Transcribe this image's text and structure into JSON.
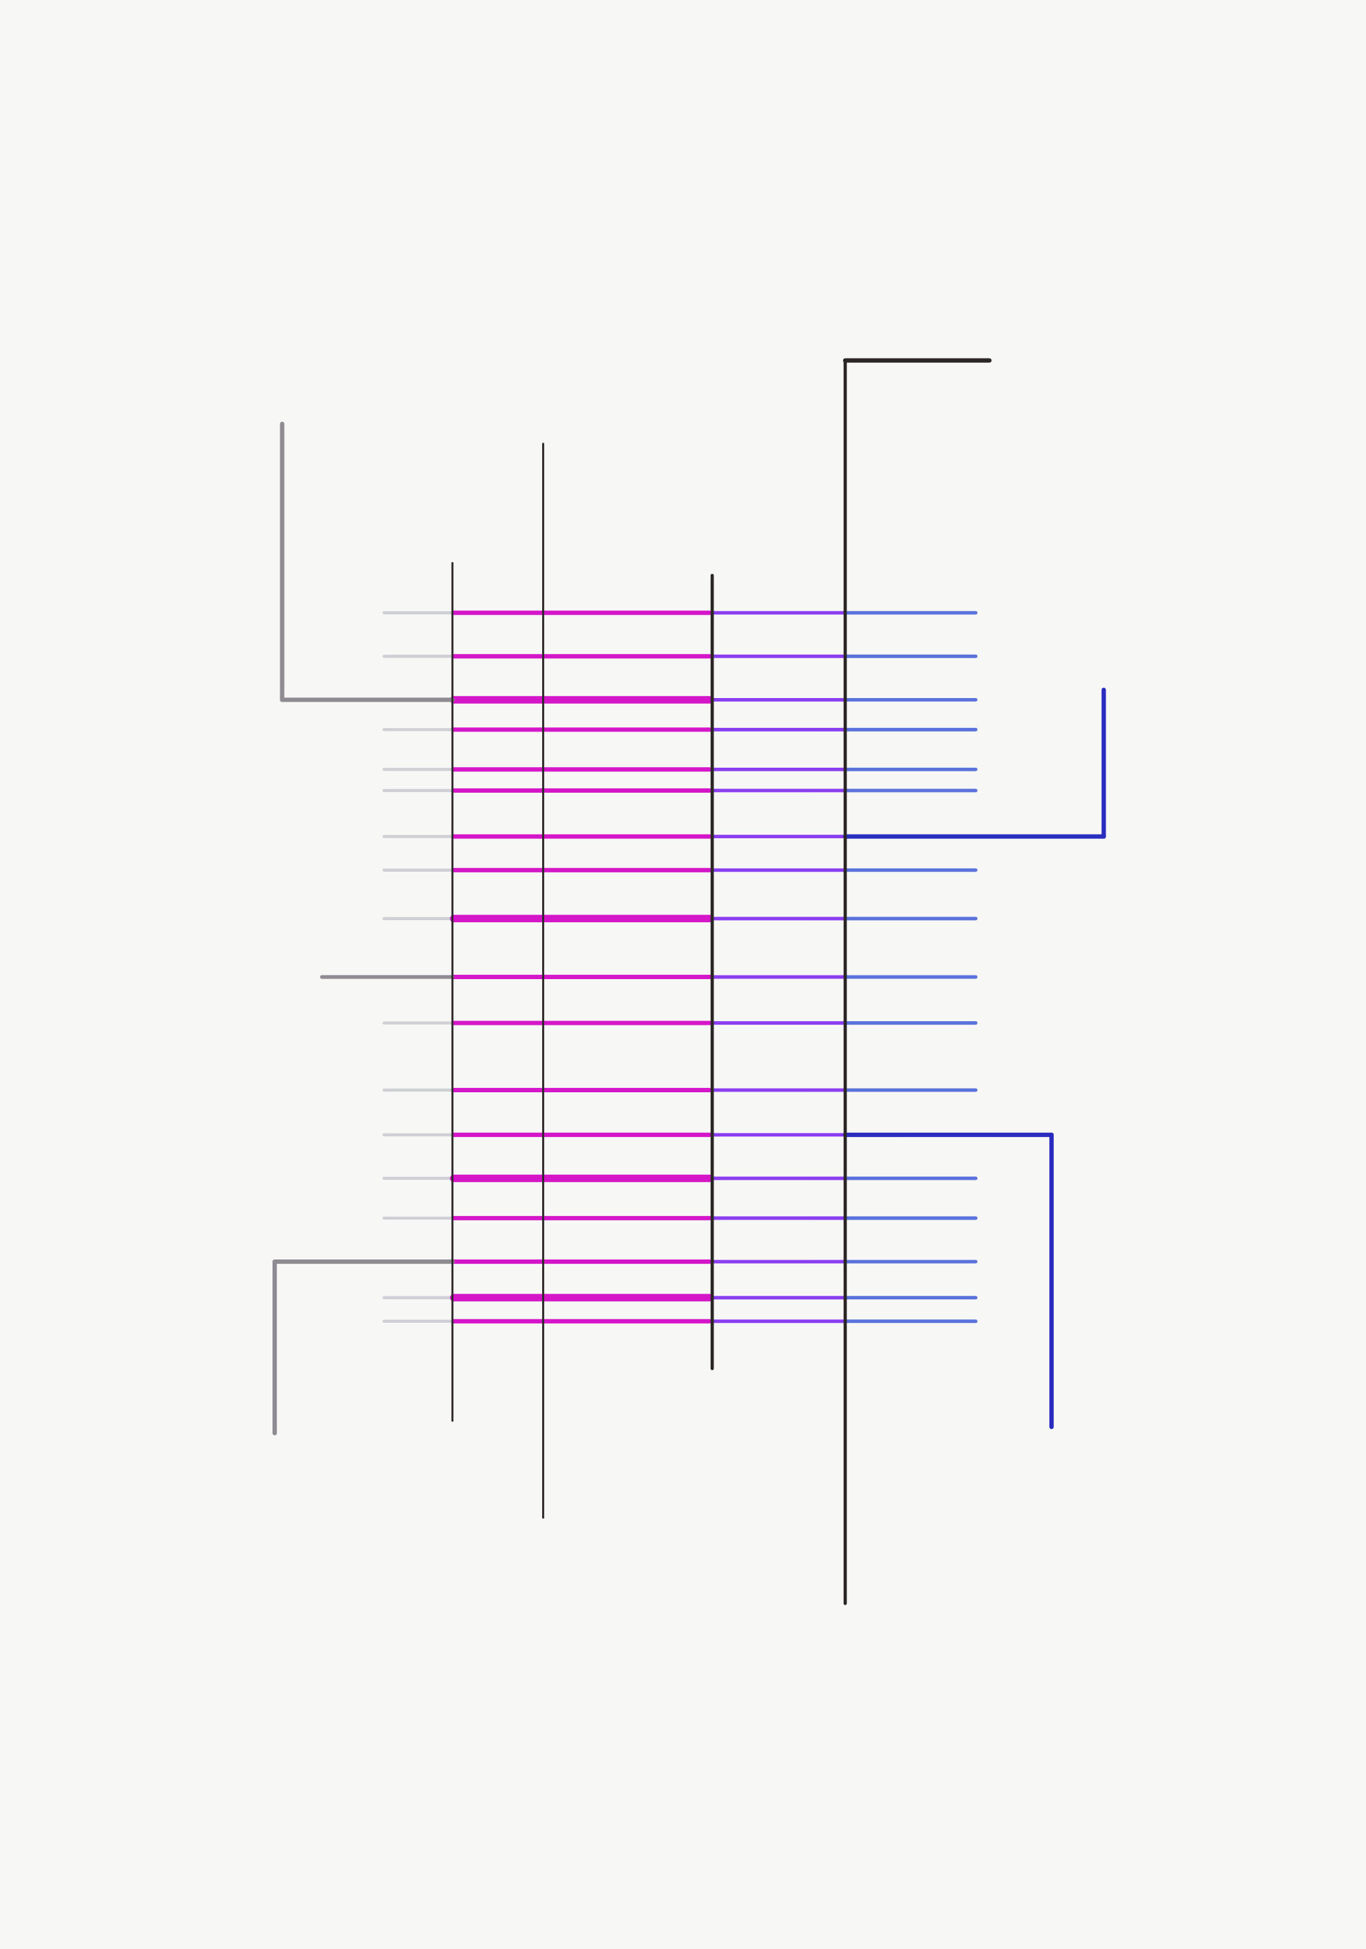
{
  "artwork": {
    "background": "#f7f7f6",
    "colors": {
      "gray_light": "#cfcfd6",
      "gray": "#8e8c92",
      "magenta": "#d416c8",
      "purple": "#8a3ef0",
      "blue": "#5a72dc",
      "dark_blue": "#2a2cc0",
      "black": "#2a2626"
    }
  }
}
